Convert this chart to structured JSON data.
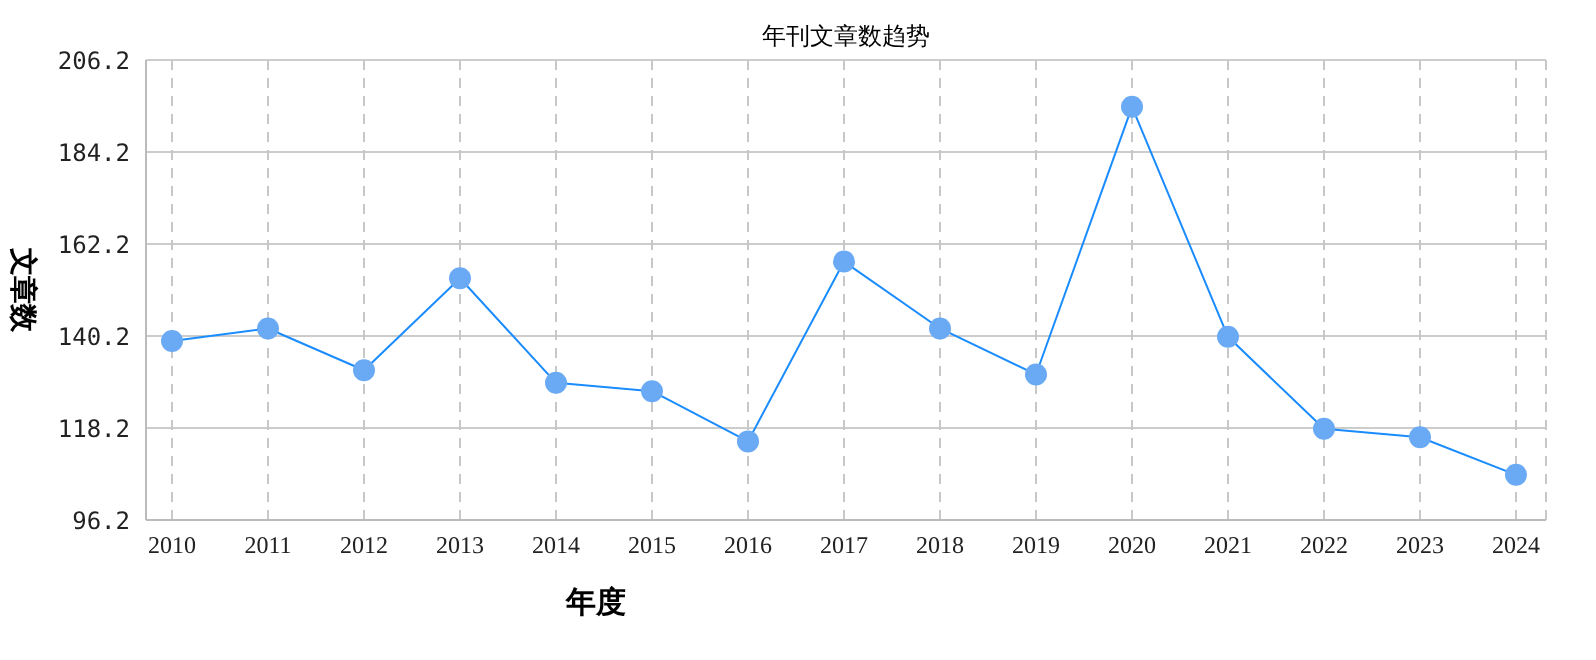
{
  "chart_data": {
    "type": "line",
    "title": "年刊文章数趋势",
    "xlabel": "年度",
    "ylabel": "文章数",
    "categories": [
      "2010",
      "2011",
      "2012",
      "2013",
      "2014",
      "2015",
      "2016",
      "2017",
      "2018",
      "2019",
      "2020",
      "2021",
      "2022",
      "2023",
      "2024"
    ],
    "series": [
      {
        "color": "#1a8cff",
        "values": [
          139,
          142,
          132,
          154,
          129,
          127,
          115,
          158,
          142,
          131,
          195,
          140,
          118,
          116,
          107
        ]
      }
    ],
    "ylim": [
      96.2,
      206.2
    ],
    "yticks": [
      96.2,
      118.2,
      140.2,
      162.2,
      184.2,
      206.2
    ],
    "grid": true,
    "marker": "circle",
    "line_style": "solid",
    "legend": false
  }
}
